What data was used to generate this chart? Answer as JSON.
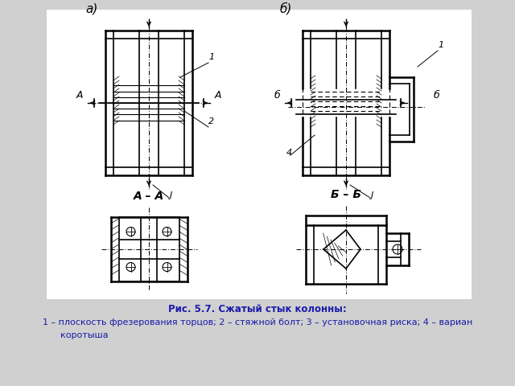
{
  "background_color": "#d0d0d0",
  "image_bg_color": "#ffffff",
  "title_line1": "Рис. 5.7. Сжатый стык колонны:",
  "title_line2": "1 – плоскость фрезерования торцов; 2 – стяжной болт; 3 – установочная риска; 4 – вариан",
  "title_line3": "коротыша",
  "title_color": "#1a1aaa",
  "title_fontsize": 8.5,
  "fig_width": 6.4,
  "fig_height": 4.8
}
